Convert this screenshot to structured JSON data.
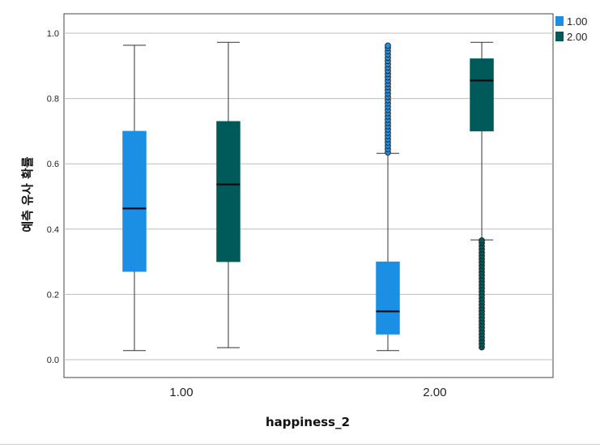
{
  "chart_data": {
    "type": "boxplot",
    "xlabel": "happiness_2",
    "ylabel": "예측 유사 확률",
    "ylim": [
      -0.05,
      1.06
    ],
    "yticks": [
      0.0,
      0.2,
      0.4,
      0.6,
      0.8,
      1.0
    ],
    "ytick_labels": [
      "0.0",
      "0.2",
      "0.4",
      "0.6",
      "0.8",
      "1.0"
    ],
    "categories": [
      "1.00",
      "2.00"
    ],
    "grid": true,
    "legend_position": "top-right",
    "series": [
      {
        "name": "1.00",
        "color": "#1a8fe3",
        "boxes": [
          {
            "category": "1.00",
            "whisker_low": 0.028,
            "q1": 0.27,
            "median": 0.463,
            "q3": 0.7,
            "whisker_high": 0.963,
            "outliers_low": [],
            "outliers_high": []
          },
          {
            "category": "2.00",
            "whisker_low": 0.028,
            "q1": 0.078,
            "median": 0.148,
            "q3": 0.3,
            "whisker_high": 0.632,
            "outliers_low": [],
            "outliers_high": [
              0.635,
              0.645,
              0.655,
              0.665,
              0.675,
              0.685,
              0.695,
              0.705,
              0.715,
              0.725,
              0.735,
              0.745,
              0.755,
              0.765,
              0.775,
              0.785,
              0.795,
              0.805,
              0.815,
              0.825,
              0.835,
              0.845,
              0.855,
              0.865,
              0.875,
              0.885,
              0.895,
              0.905,
              0.915,
              0.925,
              0.935,
              0.945,
              0.955,
              0.962
            ]
          }
        ]
      },
      {
        "name": "2.00",
        "color": "#005a5a",
        "boxes": [
          {
            "category": "1.00",
            "whisker_low": 0.037,
            "q1": 0.3,
            "median": 0.537,
            "q3": 0.73,
            "whisker_high": 0.972,
            "outliers_low": [],
            "outliers_high": []
          },
          {
            "category": "2.00",
            "whisker_low": 0.367,
            "q1": 0.7,
            "median": 0.855,
            "q3": 0.922,
            "whisker_high": 0.972,
            "outliers_low": [
              0.038,
              0.048,
              0.058,
              0.068,
              0.078,
              0.088,
              0.098,
              0.108,
              0.118,
              0.128,
              0.138,
              0.148,
              0.158,
              0.168,
              0.178,
              0.188,
              0.198,
              0.208,
              0.218,
              0.228,
              0.238,
              0.248,
              0.258,
              0.268,
              0.278,
              0.288,
              0.298,
              0.308,
              0.318,
              0.328,
              0.338,
              0.348,
              0.358,
              0.365
            ],
            "outliers_high": []
          }
        ]
      }
    ]
  }
}
